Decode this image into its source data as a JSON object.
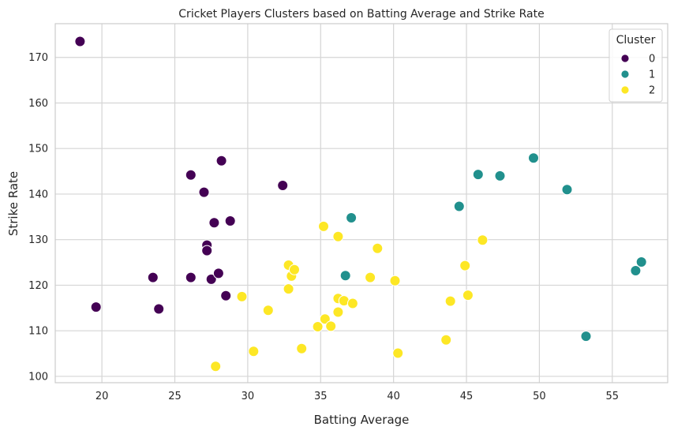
{
  "chart_data": {
    "type": "scatter",
    "title": "Cricket Players Clusters based on Batting Average and Strike Rate",
    "xlabel": "Batting Average",
    "ylabel": "Strike Rate",
    "xlim": [
      16.8,
      58.8
    ],
    "ylim": [
      98.6,
      177.4
    ],
    "xticks": [
      20,
      25,
      30,
      35,
      40,
      45,
      50,
      55
    ],
    "yticks": [
      100,
      110,
      120,
      130,
      140,
      150,
      160,
      170
    ],
    "grid": true,
    "legend": {
      "title": "Cluster",
      "placement": "top-right",
      "entries": [
        "0",
        "1",
        "2"
      ]
    },
    "colors": {
      "0": "#440154",
      "1": "#21908d",
      "2": "#fde725",
      "grid": "#d5d5d5",
      "axis": "#cccccc"
    },
    "series": [
      {
        "name": "0",
        "points": [
          [
            18.5,
            173.5
          ],
          [
            19.6,
            115.2
          ],
          [
            23.5,
            121.7
          ],
          [
            23.9,
            114.8
          ],
          [
            26.1,
            144.2
          ],
          [
            26.1,
            121.7
          ],
          [
            27.0,
            140.4
          ],
          [
            27.2,
            128.8
          ],
          [
            27.2,
            127.6
          ],
          [
            27.5,
            121.3
          ],
          [
            27.7,
            133.7
          ],
          [
            28.0,
            122.6
          ],
          [
            28.2,
            147.3
          ],
          [
            28.5,
            117.7
          ],
          [
            28.8,
            134.1
          ],
          [
            32.4,
            141.9
          ]
        ]
      },
      {
        "name": "1",
        "points": [
          [
            36.7,
            122.1
          ],
          [
            37.1,
            134.8
          ],
          [
            44.5,
            137.3
          ],
          [
            45.8,
            144.3
          ],
          [
            47.3,
            144.0
          ],
          [
            49.6,
            147.9
          ],
          [
            51.9,
            141.0
          ],
          [
            53.2,
            108.8
          ],
          [
            56.6,
            123.2
          ],
          [
            57.0,
            125.1
          ]
        ]
      },
      {
        "name": "2",
        "points": [
          [
            27.8,
            102.2
          ],
          [
            29.6,
            117.5
          ],
          [
            30.4,
            105.5
          ],
          [
            31.4,
            114.5
          ],
          [
            32.8,
            124.4
          ],
          [
            32.8,
            119.2
          ],
          [
            33.0,
            122.0
          ],
          [
            33.2,
            123.4
          ],
          [
            33.7,
            106.1
          ],
          [
            34.8,
            110.9
          ],
          [
            35.2,
            132.9
          ],
          [
            35.3,
            112.6
          ],
          [
            35.7,
            111.0
          ],
          [
            36.2,
            130.7
          ],
          [
            36.2,
            117.1
          ],
          [
            36.2,
            114.1
          ],
          [
            36.6,
            116.6
          ],
          [
            37.2,
            116.0
          ],
          [
            38.4,
            121.7
          ],
          [
            38.9,
            128.1
          ],
          [
            40.1,
            121.0
          ],
          [
            40.3,
            105.1
          ],
          [
            43.6,
            108.0
          ],
          [
            43.9,
            116.5
          ],
          [
            44.9,
            124.3
          ],
          [
            45.1,
            117.8
          ],
          [
            46.1,
            129.9
          ]
        ]
      }
    ]
  }
}
